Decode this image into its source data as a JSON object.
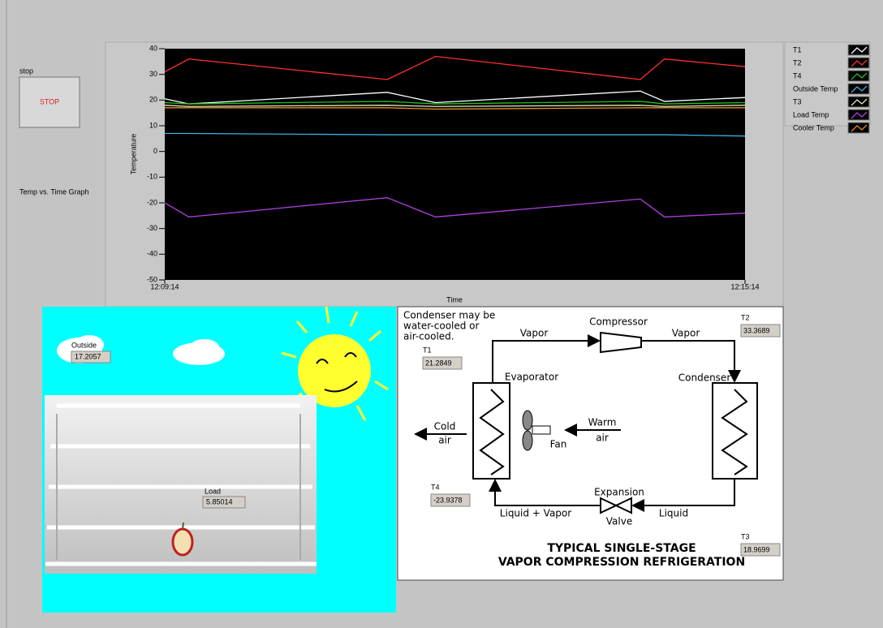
{
  "stop_button": {
    "label": "stop",
    "text": "STOP"
  },
  "chart_data": {
    "type": "line",
    "title": "Temp vs. Time Graph",
    "x_label": "Time",
    "y_label": "Temperature",
    "x": [
      0,
      15,
      138,
      168,
      295,
      310,
      360
    ],
    "xlim": [
      0,
      360
    ],
    "xticks": [
      {
        "value": 0,
        "label": "12:09:14"
      },
      {
        "value": 360,
        "label": "12:15:14"
      }
    ],
    "ylim": [
      -50,
      40
    ],
    "yticks": [
      -50,
      -40,
      -30,
      -20,
      -10,
      0,
      10,
      20,
      30,
      40
    ],
    "series": [
      {
        "name": "T1",
        "color": "#ffffff",
        "values": [
          20.5,
          18.5,
          23,
          19,
          23.5,
          19.5,
          21
        ]
      },
      {
        "name": "T2",
        "color": "#ff3030",
        "values": [
          31,
          36,
          28,
          37,
          28,
          36,
          33
        ]
      },
      {
        "name": "T4",
        "color": "#20c020",
        "values": [
          19,
          18.5,
          19.5,
          18.5,
          19.5,
          18.5,
          19
        ]
      },
      {
        "name": "Outside Temp",
        "color": "#3ab0e0",
        "values": [
          7,
          7,
          6.5,
          6.5,
          6.5,
          6.5,
          6
        ]
      },
      {
        "name": "T3",
        "color": "#e8e8c0",
        "values": [
          18,
          17.5,
          18,
          17.5,
          18,
          17.5,
          18
        ]
      },
      {
        "name": "Load Temp",
        "color": "#b040e0",
        "values": [
          -20,
          -25.5,
          -18,
          -25.5,
          -18.5,
          -25.5,
          -24
        ]
      },
      {
        "name": "Cooler Temp",
        "color": "#e09020",
        "values": [
          17,
          17,
          17,
          16.5,
          17,
          17,
          17
        ]
      }
    ]
  },
  "scene": {
    "outside_label": "Outside",
    "outside_value": "17.2057",
    "load_label": "Load",
    "load_value": "5.85014"
  },
  "diagram": {
    "note": [
      "Condenser may be",
      "water-cooled or",
      "air-cooled."
    ],
    "compressor": "Compressor",
    "vapor_left": "Vapor",
    "vapor_right": "Vapor",
    "evaporator": "Evaporator",
    "condenser": "Condenser",
    "cold_air": [
      "Cold",
      "air"
    ],
    "warm_air": [
      "Warm",
      "air"
    ],
    "fan": "Fan",
    "expansion_valve": [
      "Expansion",
      "Valve"
    ],
    "liquid_vapor": "Liquid + Vapor",
    "liquid": "Liquid",
    "title": [
      "TYPICAL SINGLE-STAGE",
      "VAPOR COMPRESSION REFRIGERATION"
    ],
    "indicators": [
      {
        "label": "T1",
        "value": "21.2849"
      },
      {
        "label": "T2",
        "value": "33.3689"
      },
      {
        "label": "T4",
        "value": "-23.9378"
      },
      {
        "label": "T3",
        "value": "18.9699"
      }
    ]
  }
}
